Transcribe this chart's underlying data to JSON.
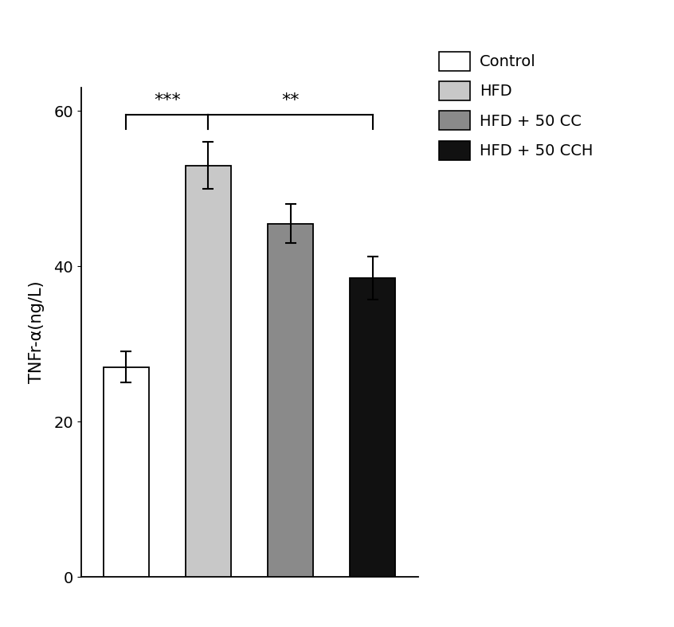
{
  "categories": [
    "Control",
    "HFD",
    "HFD + 50 CC",
    "HFD + 50 CCH"
  ],
  "values": [
    27.0,
    53.0,
    45.5,
    38.5
  ],
  "errors": [
    2.0,
    3.0,
    2.5,
    2.8
  ],
  "bar_colors": [
    "white",
    "#c8c8c8",
    "#8a8a8a",
    "#111111"
  ],
  "bar_edgecolors": [
    "black",
    "black",
    "black",
    "black"
  ],
  "hatch": [
    "",
    "",
    "",
    ""
  ],
  "ylabel": "TNFr-α(ng/L)",
  "ylim": [
    0,
    63
  ],
  "yticks": [
    0,
    20,
    40,
    60
  ],
  "legend_labels": [
    "Control",
    "HFD",
    "HFD + 50 CC",
    "HFD + 50 CCH"
  ],
  "legend_colors": [
    "white",
    "#c8c8c8",
    "#8a8a8a",
    "#111111"
  ],
  "legend_hatches": [
    "",
    "",
    "",
    ""
  ],
  "bar_width": 0.55,
  "background_color": "#ffffff",
  "font_size": 15,
  "tick_font_size": 14
}
